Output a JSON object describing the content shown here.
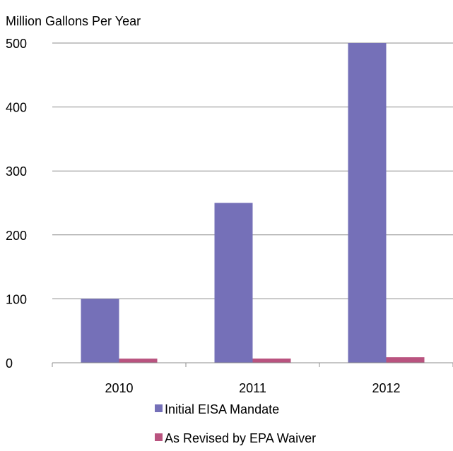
{
  "chart_data": {
    "type": "bar",
    "ylabel": "Million Gallons Per Year",
    "categories": [
      "2010",
      "2011",
      "2012"
    ],
    "y_ticks": [
      0,
      100,
      200,
      300,
      400,
      500
    ],
    "ylim": [
      0,
      500
    ],
    "grid": true,
    "legend_position": "bottom",
    "series": [
      {
        "name": "Initial EISA Mandate",
        "color": "#7570b8",
        "values": [
          100,
          250,
          500
        ]
      },
      {
        "name": "As Revised by EPA Waiver",
        "color": "#b9537f",
        "values": [
          6.5,
          6.6,
          8.65
        ]
      }
    ]
  }
}
